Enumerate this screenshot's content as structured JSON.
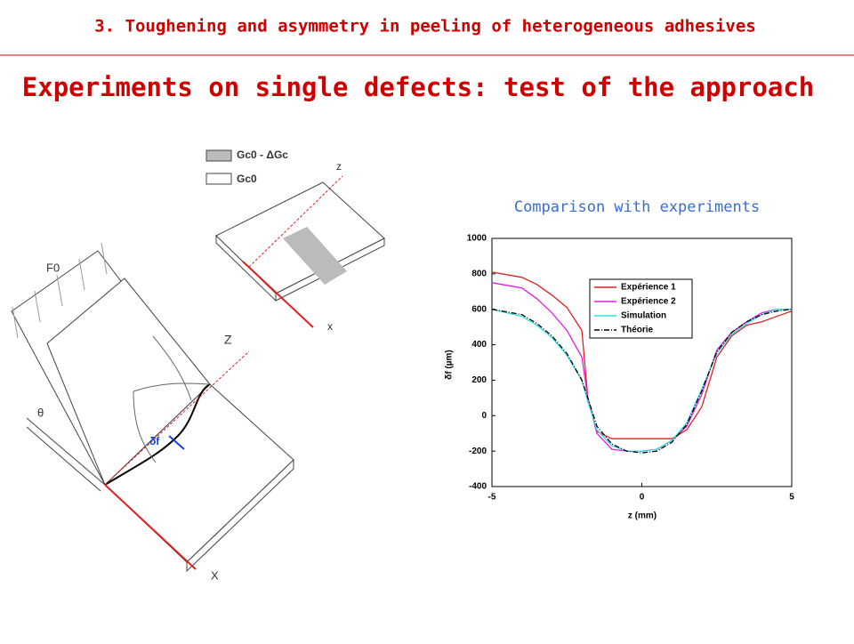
{
  "header": {
    "section": "3. Toughening and asymmetry in peeling of heterogeneous adhesives",
    "title": "Experiments on single defects: test of the approach"
  },
  "diagram": {
    "inset_legend": [
      "Gc0 - ΔGc",
      "Gc0"
    ],
    "inset_z": "z",
    "inset_x": "x",
    "force": "F0",
    "angle": "θ",
    "front": "δf",
    "axis_z": "Z",
    "axis_x": "X"
  },
  "chart_data": {
    "type": "line",
    "title": "Comparison with experiments",
    "x_label": "z (mm)",
    "y_label": "δf (µm)",
    "x": [
      -5,
      -4,
      -3.5,
      -3,
      -2.5,
      -2,
      -1.8,
      -1.5,
      -1,
      -0.5,
      0,
      0.5,
      1,
      1.5,
      2,
      2.5,
      3,
      3.5,
      4,
      4.5,
      5
    ],
    "series": [
      {
        "name": "Expérience 1",
        "color": "#e02020",
        "linestyle": "solid",
        "values": [
          810,
          780,
          740,
          680,
          610,
          480,
          100,
          -90,
          -130,
          -130,
          -130,
          -130,
          -130,
          -80,
          50,
          330,
          450,
          510,
          530,
          560,
          590
        ]
      },
      {
        "name": "Expérience 2",
        "color": "#e020e0",
        "linestyle": "solid",
        "values": [
          750,
          720,
          660,
          580,
          480,
          330,
          100,
          -100,
          -190,
          -200,
          -200,
          -190,
          -140,
          -60,
          120,
          370,
          470,
          530,
          580,
          600,
          600
        ]
      },
      {
        "name": "Simulation",
        "color": "#30e0e0",
        "linestyle": "solid",
        "values": [
          600,
          560,
          510,
          440,
          340,
          200,
          80,
          -80,
          -170,
          -200,
          -200,
          -190,
          -140,
          -40,
          150,
          350,
          460,
          520,
          570,
          600,
          600
        ]
      },
      {
        "name": "Théorie",
        "color": "#000000",
        "linestyle": "dashdot",
        "values": [
          600,
          570,
          520,
          450,
          350,
          200,
          100,
          -60,
          -160,
          -200,
          -210,
          -200,
          -150,
          -50,
          140,
          360,
          470,
          530,
          570,
          590,
          600
        ]
      }
    ],
    "xlim": [
      -5,
      5
    ],
    "xticks": [
      -5,
      0,
      5
    ],
    "ylim": [
      -400,
      1000
    ],
    "yticks": [
      -400,
      -200,
      0,
      200,
      400,
      600,
      800,
      1000
    ],
    "legend": "upper right"
  }
}
